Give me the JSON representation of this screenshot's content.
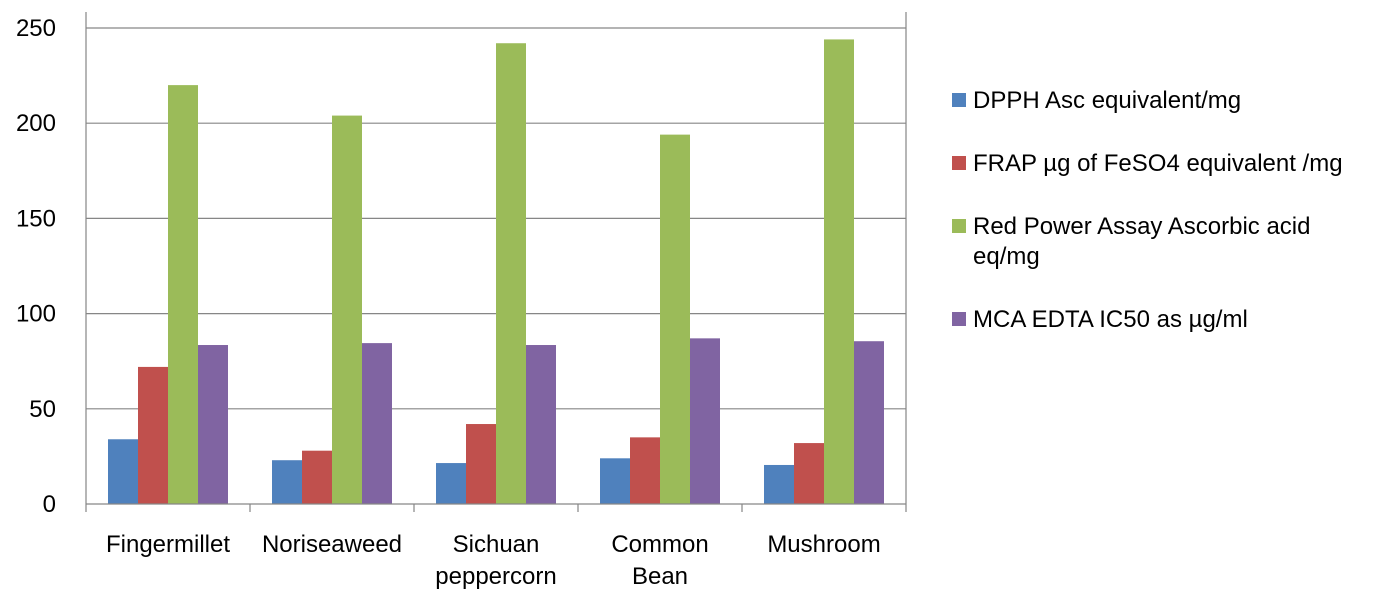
{
  "chart_data": {
    "type": "bar",
    "title": "",
    "xlabel": "",
    "ylabel": "",
    "categories": [
      "Fingermillet",
      "Noriseaweed",
      "Sichuan peppercorn",
      "Common Bean",
      "Mushroom"
    ],
    "category_label_lines": [
      [
        "Fingermillet"
      ],
      [
        "Noriseaweed"
      ],
      [
        "Sichuan",
        "peppercorn"
      ],
      [
        "Common",
        "Bean"
      ],
      [
        "Mushroom"
      ]
    ],
    "ylim": [
      0,
      250
    ],
    "yticks": [
      0,
      50,
      100,
      150,
      200,
      250
    ],
    "grid": true,
    "legend_position": "right",
    "series": [
      {
        "name": "DPPH Asc equivalent/mg",
        "color": "#4f81bd",
        "values": [
          34,
          23,
          21.5,
          24,
          20.5
        ]
      },
      {
        "name": "FRAP µg of FeSO4 equivalent /mg",
        "color": "#c0504d",
        "values": [
          72,
          28,
          42,
          35,
          32
        ]
      },
      {
        "name": "Red Power Assay Ascorbic acid eq/mg",
        "color": "#9bbb59",
        "values": [
          220,
          204,
          242,
          194,
          244
        ]
      },
      {
        "name": "MCA EDTA IC50 as µg/ml",
        "color": "#8064a2",
        "values": [
          83.5,
          84.5,
          83.5,
          87,
          85.5
        ]
      }
    ]
  }
}
